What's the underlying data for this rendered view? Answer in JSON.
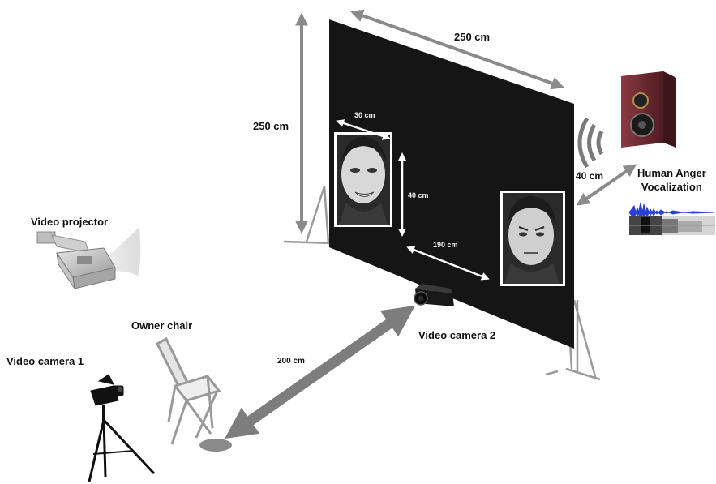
{
  "labels": {
    "screen_width": "250 cm",
    "screen_height": "250 cm",
    "face_width": "30 cm",
    "face_height": "40 cm",
    "face_gap": "190 cm",
    "speaker_distance": "40 cm",
    "vocalization_line1": "Human Anger",
    "vocalization_line2": "Vocalization",
    "video_projector": "Video projector",
    "owner_chair": "Owner chair",
    "video_camera_1": "Video camera 1",
    "video_camera_2": "Video camera 2",
    "chair_distance": "200 cm"
  },
  "colors": {
    "screen": "#151515",
    "arrow": "#8a8a8a",
    "speaker_body": "#6b2a30",
    "waveform": "#2a3fd6"
  },
  "icons": [
    "video-projector-icon",
    "chair-icon",
    "tripod-camera-icon",
    "video-camera-icon",
    "speaker-icon",
    "sound-waves-icon",
    "waveform-icon",
    "spectrogram-icon"
  ]
}
